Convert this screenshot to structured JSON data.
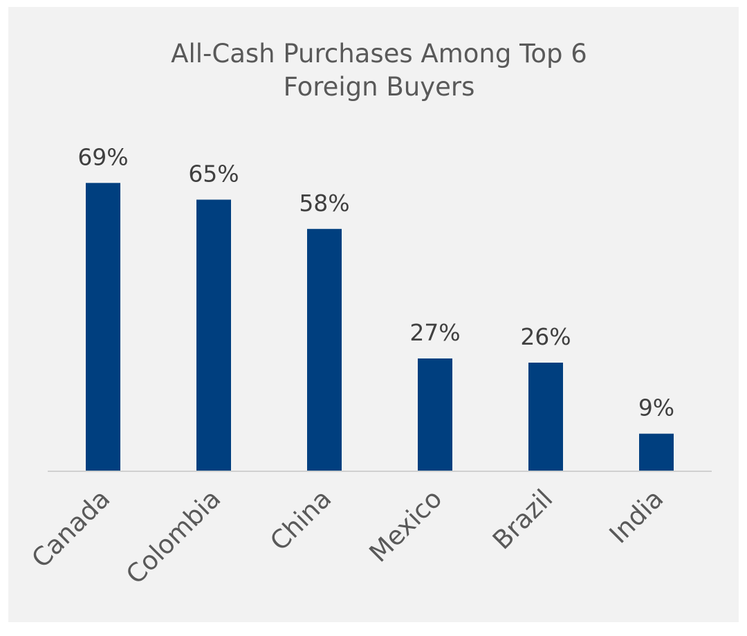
{
  "chart_data": {
    "type": "bar",
    "title_lines": [
      "All-Cash Purchases Among Top 6",
      "Foreign Buyers"
    ],
    "categories": [
      "Canada",
      "Colombia",
      "China",
      "Mexico",
      "Brazil",
      "India"
    ],
    "values": [
      69,
      65,
      58,
      27,
      26,
      9
    ],
    "value_labels": [
      "69%",
      "65%",
      "58%",
      "27%",
      "26%",
      "9%"
    ],
    "ylim": [
      0,
      78
    ],
    "grid": false,
    "legend": "none",
    "colors": {
      "bar": "#003f7f",
      "axis": "#d0d0d0",
      "background": "#f2f2f2"
    }
  }
}
